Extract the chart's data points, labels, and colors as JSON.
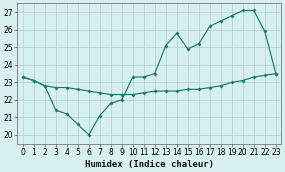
{
  "xlabel": "Humidex (Indice chaleur)",
  "x": [
    0,
    1,
    2,
    3,
    4,
    5,
    6,
    7,
    8,
    9,
    10,
    11,
    12,
    13,
    14,
    15,
    16,
    17,
    18,
    19,
    20,
    21,
    22,
    23
  ],
  "line_upper": [
    23.3,
    23.1,
    22.8,
    21.4,
    21.2,
    20.6,
    20.0,
    21.1,
    21.8,
    22.0,
    23.3,
    23.3,
    23.5,
    25.1,
    25.8,
    24.9,
    25.2,
    26.2,
    26.5,
    26.8,
    27.1,
    27.1,
    25.9,
    23.5
  ],
  "line_lower": [
    23.3,
    23.1,
    22.8,
    22.7,
    22.7,
    22.6,
    22.5,
    22.4,
    22.3,
    22.3,
    22.3,
    22.4,
    22.5,
    22.5,
    22.5,
    22.6,
    22.6,
    22.7,
    22.8,
    23.0,
    23.1,
    23.3,
    23.4,
    23.5
  ],
  "ylim": [
    19.5,
    27.5
  ],
  "xlim": [
    -0.5,
    23.5
  ],
  "yticks": [
    20,
    21,
    22,
    23,
    24,
    25,
    26,
    27
  ],
  "xticks": [
    0,
    1,
    2,
    3,
    4,
    5,
    6,
    7,
    8,
    9,
    10,
    11,
    12,
    13,
    14,
    15,
    16,
    17,
    18,
    19,
    20,
    21,
    22,
    23
  ],
  "line_color": "#1a7a6e",
  "bg_color": "#d8efef",
  "grid_color": "#aed0d0",
  "tick_fontsize": 5.5,
  "label_fontsize": 6.5
}
